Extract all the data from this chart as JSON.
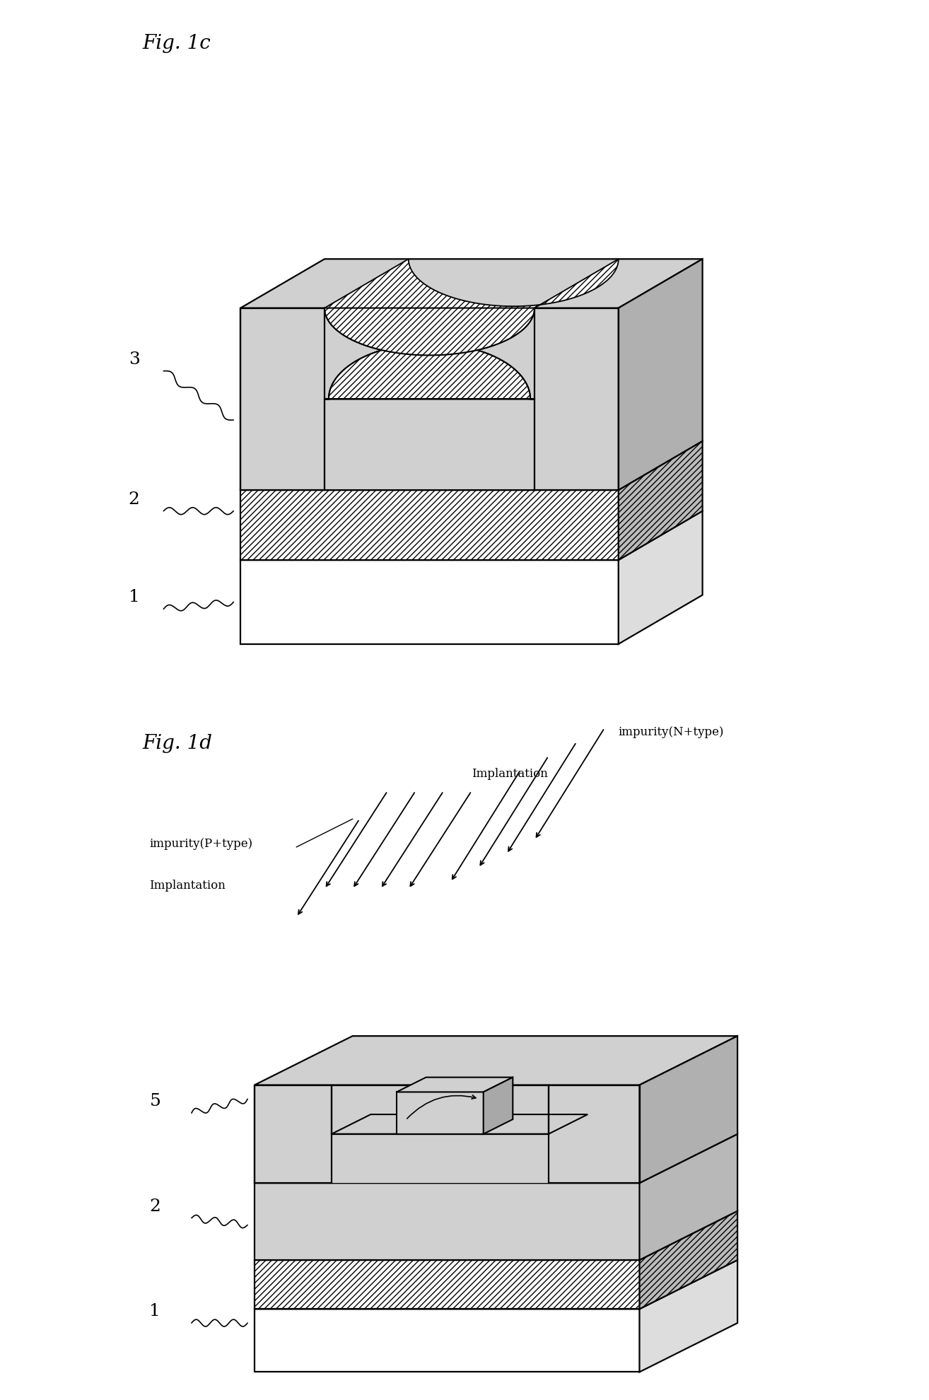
{
  "fig1c_label": "Fig. 1c",
  "fig1d_label": "Fig. 1d",
  "label1": "1",
  "label2": "2",
  "label3": "3",
  "label5": "5",
  "impurity_n": "impurity(N+type)",
  "impurity_p": "impurity(P+type)",
  "implantation_n": "Implantation",
  "implantation_p": "Implantation",
  "bg_color": "#ffffff",
  "dotted_color": "#d0d0d0",
  "hatch_pattern": "////",
  "line_color": "#000000",
  "right_face_color": "#b0b0b0",
  "right_hatch_color": "#909090"
}
